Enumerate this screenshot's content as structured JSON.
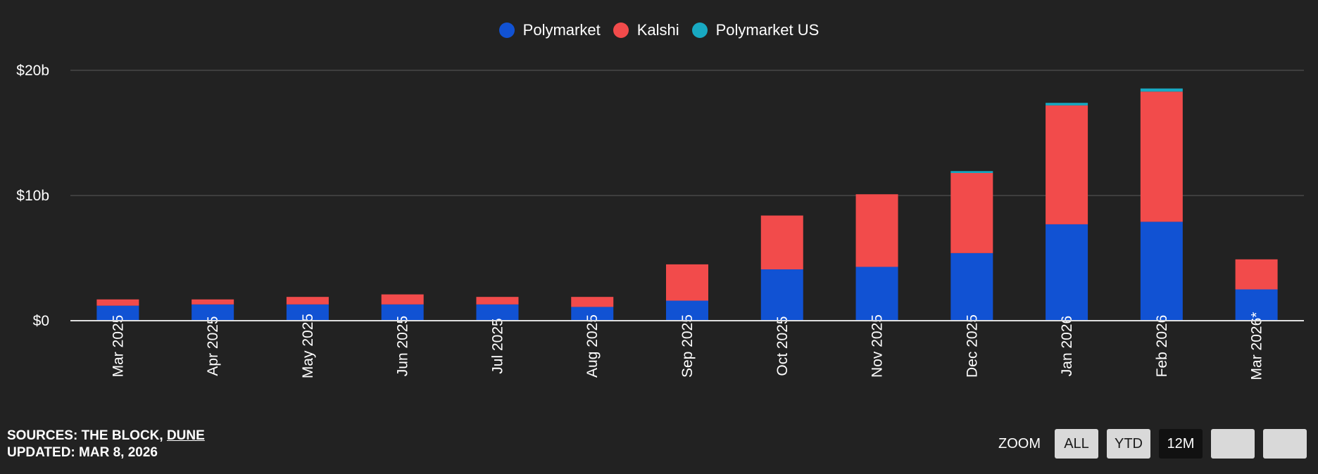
{
  "legend": [
    {
      "label": "Polymarket",
      "color": "#1152d3"
    },
    {
      "label": "Kalshi",
      "color": "#f24b4b"
    },
    {
      "label": "Polymarket US",
      "color": "#18a9c2"
    }
  ],
  "chart_data": {
    "type": "bar",
    "stacked": true,
    "categories": [
      "Mar 2025",
      "Apr 2025",
      "May 2025",
      "Jun 2025",
      "Jul 2025",
      "Aug 2025",
      "Sep 2025",
      "Oct 2025",
      "Nov 2025",
      "Dec 2025",
      "Jan 2026",
      "Feb 2026",
      "Mar 2026*"
    ],
    "series": [
      {
        "name": "Polymarket",
        "color": "#1152d3",
        "values": [
          1.2,
          1.3,
          1.3,
          1.3,
          1.3,
          1.1,
          1.6,
          4.1,
          4.3,
          5.4,
          7.7,
          7.9,
          2.5
        ]
      },
      {
        "name": "Kalshi",
        "color": "#f24b4b",
        "values": [
          0.5,
          0.4,
          0.6,
          0.8,
          0.6,
          0.8,
          2.9,
          4.3,
          5.8,
          6.4,
          9.5,
          10.4,
          2.4
        ]
      },
      {
        "name": "Polymarket US",
        "color": "#18a9c2",
        "values": [
          0,
          0,
          0,
          0,
          0,
          0,
          0,
          0,
          0,
          0.15,
          0.2,
          0.25,
          0
        ]
      }
    ],
    "y_ticks": [
      {
        "value": 0,
        "label": "$0"
      },
      {
        "value": 10,
        "label": "$10b"
      },
      {
        "value": 20,
        "label": "$20b"
      }
    ],
    "ylim": [
      0,
      20
    ],
    "grid": true,
    "legend_position": "top-center"
  },
  "footer": {
    "sources_prefix": "SOURCES: THE BLOCK, ",
    "sources_link": "DUNE",
    "updated": "UPDATED: MAR 8, 2026"
  },
  "zoom": {
    "label": "ZOOM",
    "buttons": [
      "ALL",
      "YTD",
      "12M",
      "",
      ""
    ],
    "active": "12M"
  }
}
